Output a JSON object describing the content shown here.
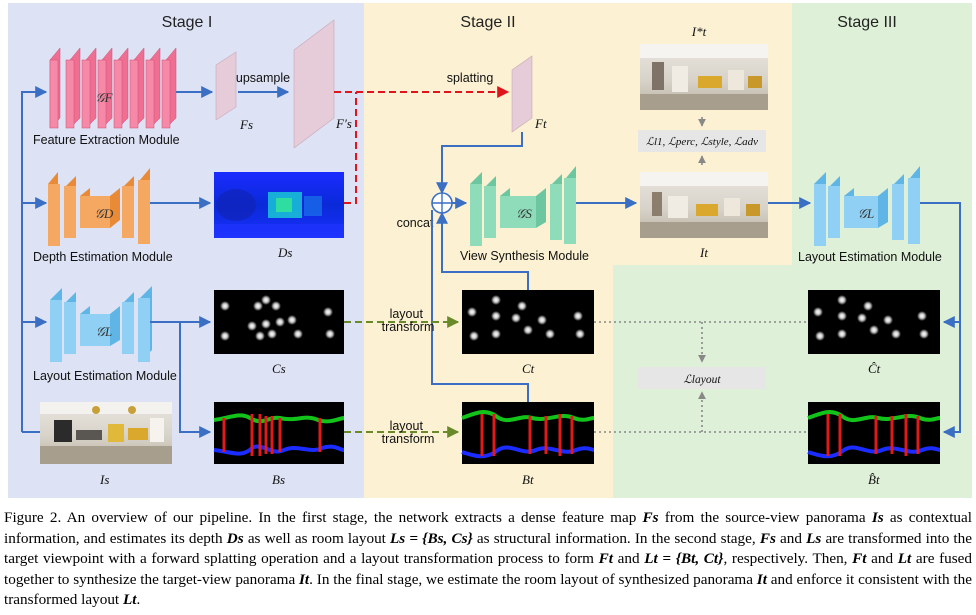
{
  "stages": {
    "s1": "Stage I",
    "s2": "Stage II",
    "s3": "Stage III"
  },
  "modules": {
    "feature": "Feature Extraction Module",
    "depth": "Depth Estimation Module",
    "layout1": "Layout Estimation Module",
    "view": "View Synthesis Module",
    "layout3": "Layout Estimation Module"
  },
  "networks": {
    "gF": "𝒢F",
    "gD": "𝒢D",
    "gL1": "𝒢L",
    "gS": "𝒢S",
    "gL3": "𝒢L"
  },
  "arrows": {
    "upsample": "upsample",
    "splatting": "splatting",
    "concat": "concat",
    "layout_transform_1": "layout\ntransform",
    "layout_transform_2": "layout\ntransform"
  },
  "symbols": {
    "Fs": "Fs",
    "Fs_prime": "F′s",
    "Ft": "Ft",
    "Ds": "Ds",
    "Cs": "Cs",
    "Bs": "Bs",
    "Is": "Is",
    "Ct": "Ct",
    "Bt": "Bt",
    "It": "It",
    "It_star": "I*t",
    "Ct_hat": "Ĉt",
    "Bt_hat": "B̂t"
  },
  "losses": {
    "synth": "ℒl1, ℒperc, ℒstyle, ℒadv",
    "layout": "ℒlayout"
  },
  "caption": {
    "p1": "Figure 2. An overview of our pipeline. In the first stage, the network extracts a dense feature map ",
    "Fs": "Fs",
    "p2": " from the source-view panorama ",
    "Is": "Is",
    "p3": " as contextual information, and estimates its depth ",
    "Ds": "Ds",
    "p4": " as well as room layout ",
    "Ls": "Ls = {Bs, Cs}",
    "p5": " as structural information. In the second stage, ",
    "Fs2": "Fs",
    "p6": " and ",
    "Ls2": "Ls",
    "p7": " are transformed into the target viewpoint with a forward splatting operation and a layout transformation process to form ",
    "Ft": "Ft",
    "p8": " and ",
    "Lt": "Lt = {Bt, Ct}",
    "p9": ", respectively. Then, ",
    "Ft2": "Ft",
    "p10": " and ",
    "Lt2": "Lt",
    "p11": " are fused together to synthesize the target-view panorama ",
    "It": "It",
    "p12": ". In the final stage, we estimate the room layout of synthesized panorama ",
    "It2": "It",
    "p13": " and enforce it consistent with the transformed layout ",
    "Lt3": "Lt",
    "p14": "."
  }
}
